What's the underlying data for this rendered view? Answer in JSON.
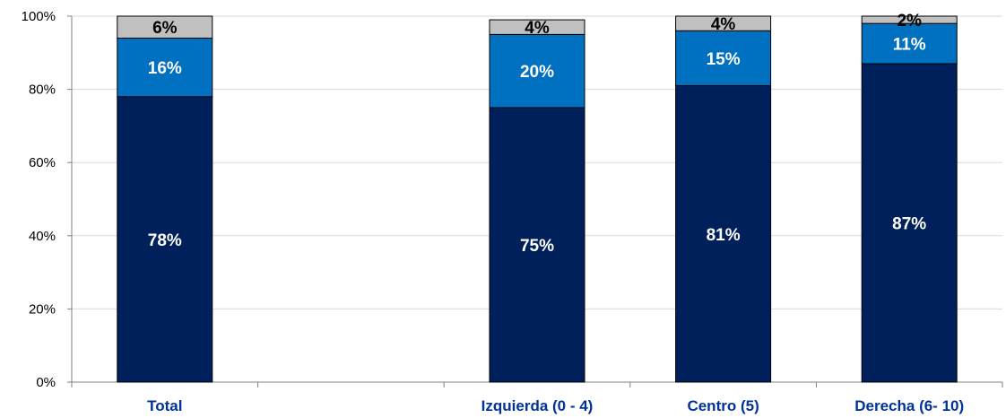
{
  "chart_data": {
    "type": "bar",
    "stacked": true,
    "categories": [
      "Total",
      "",
      "Izquierda (0 - 4)",
      "Centro  (5)",
      "Derecha (6- 10)"
    ],
    "series": [
      {
        "values": [
          78,
          null,
          75,
          81,
          87
        ],
        "labels": [
          "78%",
          "",
          "75%",
          "81%",
          "87%"
        ],
        "color": "#00205b",
        "label_color": "#ffffff"
      },
      {
        "values": [
          16,
          null,
          20,
          15,
          11
        ],
        "labels": [
          "16%",
          "",
          "20%",
          "15%",
          "11%"
        ],
        "color": "#0070c0",
        "label_color": "#ffffff"
      },
      {
        "values": [
          6,
          null,
          4,
          4,
          2
        ],
        "labels": [
          "6%",
          "",
          "4%",
          "4%",
          "2%"
        ],
        "color": "#c0c0c0",
        "label_color": "#000000"
      }
    ],
    "ylim": [
      0,
      100
    ],
    "yticks": [
      0,
      20,
      40,
      60,
      80,
      100
    ],
    "ytick_labels": [
      "0%",
      "20%",
      "40%",
      "60%",
      "80%",
      "100%"
    ],
    "grid": true,
    "legend": "none",
    "title": "",
    "xlabel": "",
    "ylabel": ""
  }
}
